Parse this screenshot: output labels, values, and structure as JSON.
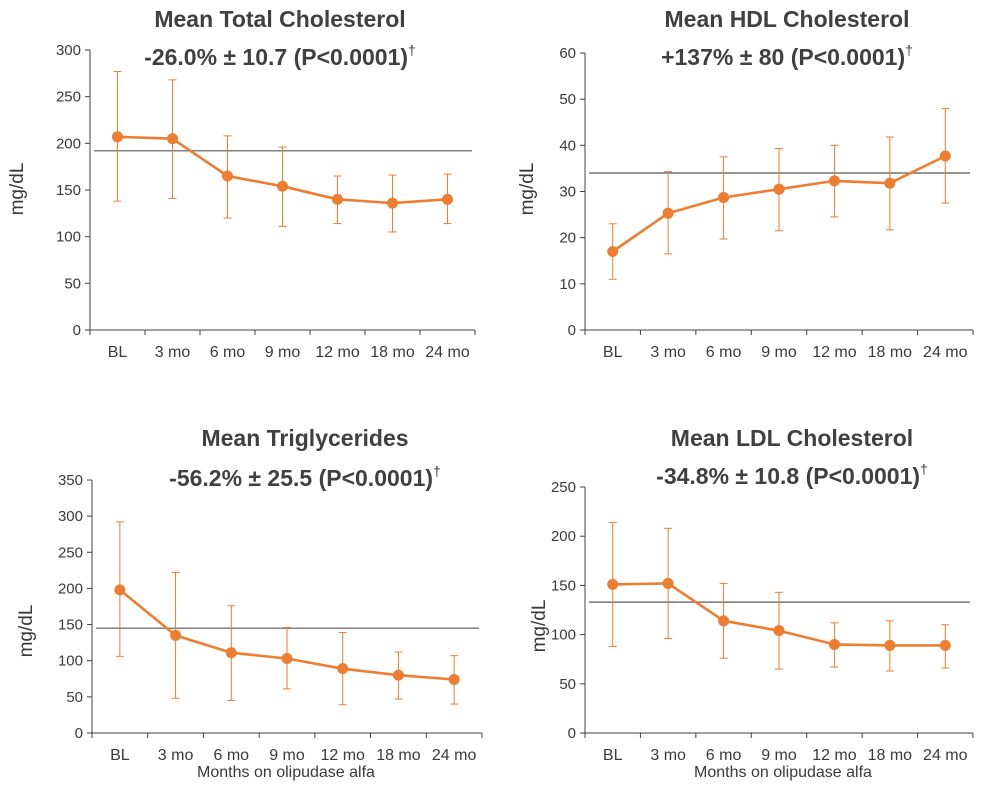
{
  "chart_data": [
    {
      "type": "line",
      "title": "Mean Total Cholesterol",
      "subtitle": "-26.0% ± 10.7 (P<0.0001)",
      "subtitle_mark": "†",
      "xlabel": "",
      "ylabel": "mg/dL",
      "categories": [
        "BL",
        "3 mo",
        "6 mo",
        "9 mo",
        "12 mo",
        "18 mo",
        "24 mo"
      ],
      "ylim": [
        0,
        300
      ],
      "yticks": [
        0,
        50,
        100,
        150,
        200,
        250,
        300
      ],
      "reference_line": 192,
      "series": [
        {
          "values": [
            207,
            205,
            165,
            154,
            140,
            136,
            140
          ],
          "err_low": [
            138,
            141,
            120,
            111,
            114,
            105,
            114
          ],
          "err_high": [
            277,
            268,
            208,
            196,
            165,
            166,
            167
          ]
        }
      ]
    },
    {
      "type": "line",
      "title": "Mean HDL Cholesterol",
      "subtitle": "+137% ± 80 (P<0.0001)",
      "subtitle_mark": "†",
      "xlabel": "",
      "ylabel": "mg/dL",
      "categories": [
        "BL",
        "3 mo",
        "6 mo",
        "9 mo",
        "12 mo",
        "18 mo",
        "24 mo"
      ],
      "ylim": [
        0,
        60
      ],
      "yticks": [
        0,
        10,
        20,
        30,
        40,
        50,
        60
      ],
      "reference_line": 34,
      "series": [
        {
          "values": [
            17,
            25.3,
            28.7,
            30.5,
            32.3,
            31.8,
            37.7
          ],
          "err_low": [
            11,
            16.5,
            19.7,
            21.5,
            24.5,
            21.7,
            27.5
          ],
          "err_high": [
            23,
            34.3,
            37.5,
            39.3,
            40,
            41.8,
            48
          ]
        }
      ]
    },
    {
      "type": "line",
      "title": "Mean Triglycerides",
      "subtitle": "-56.2% ± 25.5 (P<0.0001)",
      "subtitle_mark": "†",
      "xlabel": "Months on olipudase alfa",
      "ylabel": "mg/dL",
      "categories": [
        "BL",
        "3 mo",
        "6 mo",
        "9 mo",
        "12 mo",
        "18 mo",
        "24 mo"
      ],
      "ylim": [
        0,
        350
      ],
      "yticks": [
        0,
        50,
        100,
        150,
        200,
        250,
        300,
        350
      ],
      "reference_line": 145,
      "series": [
        {
          "values": [
            198,
            135,
            111,
            103,
            89,
            80,
            74
          ],
          "err_low": [
            106,
            48,
            45,
            61,
            39,
            47,
            40
          ],
          "err_high": [
            292,
            222,
            176,
            146,
            139,
            112,
            107
          ]
        }
      ]
    },
    {
      "type": "line",
      "title": "Mean LDL Cholesterol",
      "subtitle": "-34.8% ± 10.8 (P<0.0001)",
      "subtitle_mark": "†",
      "xlabel": "Months on olipudase alfa",
      "ylabel": "mg/dL",
      "categories": [
        "BL",
        "3 mo",
        "6 mo",
        "9 mo",
        "12 mo",
        "18 mo",
        "24 mo"
      ],
      "ylim": [
        0,
        250
      ],
      "yticks": [
        0,
        50,
        100,
        150,
        200,
        250
      ],
      "reference_line": 133,
      "series": [
        {
          "values": [
            151,
            152,
            114,
            104,
            90,
            89,
            89
          ],
          "err_low": [
            88,
            96,
            76,
            65,
            67,
            63,
            66
          ],
          "err_high": [
            214,
            208,
            152,
            143,
            112,
            114,
            110
          ]
        }
      ]
    }
  ],
  "colors": {
    "series": "#ED7D31",
    "reference_line": "#595959",
    "axis": "#404040",
    "text": "#3a3a3a"
  }
}
